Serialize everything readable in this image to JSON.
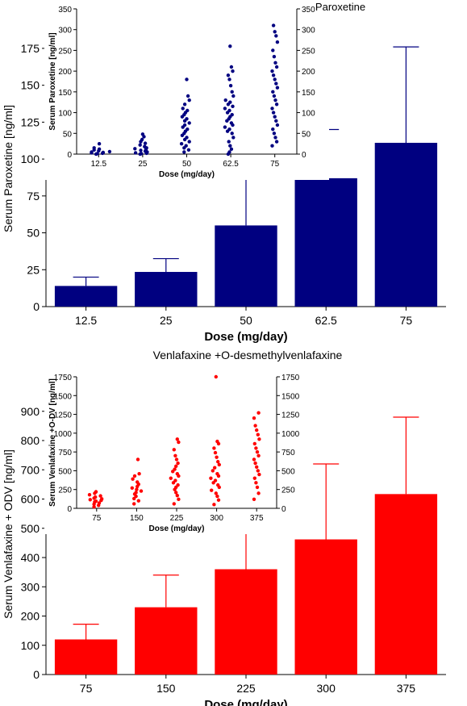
{
  "chart_data": [
    {
      "id": "paroxetine_main",
      "type": "bar",
      "title": "",
      "xlabel": "Dose (mg/day)",
      "ylabel": "Serum Paroxetine [ng/ml]",
      "categories": [
        "12.5",
        "25",
        "50",
        "62.5",
        "75"
      ],
      "values": [
        14,
        23.5,
        55,
        87,
        111
      ],
      "error_upper": [
        20,
        32.5,
        88,
        120,
        176
      ],
      "ylim": [
        0,
        187
      ],
      "yticks": [
        0,
        25,
        50,
        75,
        100,
        125,
        150,
        175
      ],
      "color": "#000080",
      "grid": false
    },
    {
      "id": "paroxetine_inset",
      "type": "scatter",
      "title": "Paroxetine",
      "xlabel": "Dose (mg/day)",
      "ylabel": "Serum Paroxetine [ng/ml]",
      "categories": [
        "12.5",
        "25",
        "50",
        "62.5",
        "75"
      ],
      "ylim": [
        0,
        350
      ],
      "yticks": [
        0,
        50,
        100,
        150,
        200,
        250,
        300,
        350
      ],
      "right_axis": true,
      "color": "#000080",
      "points": [
        [
          0,
          1,
          2,
          3,
          4,
          5,
          6,
          8,
          10,
          12,
          15,
          25
        ],
        [
          0,
          1,
          2,
          3,
          5,
          7,
          9,
          11,
          13,
          15,
          18,
          22,
          26,
          30,
          35,
          42,
          48
        ],
        [
          5,
          10,
          15,
          20,
          25,
          30,
          35,
          40,
          45,
          50,
          55,
          60,
          65,
          70,
          75,
          80,
          85,
          90,
          95,
          100,
          105,
          110,
          120,
          130,
          140,
          180
        ],
        [
          0,
          5,
          12,
          20,
          30,
          40,
          50,
          55,
          60,
          65,
          70,
          75,
          80,
          85,
          90,
          95,
          100,
          105,
          110,
          115,
          120,
          125,
          130,
          140,
          150,
          165,
          180,
          190,
          200,
          210,
          260
        ],
        [
          20,
          30,
          40,
          50,
          60,
          70,
          80,
          90,
          100,
          110,
          120,
          130,
          140,
          150,
          160,
          170,
          180,
          190,
          200,
          210,
          220,
          235,
          250,
          270,
          285,
          295,
          310
        ]
      ]
    },
    {
      "id": "venlafaxine_main",
      "type": "bar",
      "title": "Venlafaxine +O-desmethylvenlafaxine",
      "xlabel": "Dose (mg/day)",
      "ylabel": "Serum Venlafaxine + ODV [ng/ml]",
      "categories": [
        "75",
        "150",
        "225",
        "300",
        "375"
      ],
      "values": [
        120,
        230,
        360,
        462,
        617
      ],
      "error_upper": [
        172,
        340,
        530,
        720,
        880
      ],
      "ylim": [
        0,
        960
      ],
      "yticks": [
        0,
        100,
        200,
        300,
        400,
        500,
        600,
        700,
        800,
        900
      ],
      "color": "#ff0000",
      "grid": false
    },
    {
      "id": "venlafaxine_inset",
      "type": "scatter",
      "title": "",
      "xlabel": "Dose (mg/day)",
      "ylabel": "Serum Venlafaxine +O-DV [ng/ml]",
      "categories": [
        "75",
        "150",
        "225",
        "300",
        "375"
      ],
      "ylim": [
        0,
        1750
      ],
      "yticks": [
        0,
        250,
        500,
        750,
        1000,
        1250,
        1500,
        1750
      ],
      "right_axis": true,
      "color": "#ff0000",
      "points": [
        [
          20,
          40,
          55,
          70,
          85,
          95,
          105,
          115,
          125,
          135,
          150,
          165,
          180,
          200,
          220
        ],
        [
          60,
          100,
          130,
          160,
          190,
          210,
          230,
          250,
          270,
          290,
          320,
          350,
          390,
          430,
          460,
          650
        ],
        [
          60,
          120,
          170,
          210,
          250,
          280,
          310,
          340,
          370,
          400,
          430,
          460,
          490,
          520,
          560,
          600,
          650,
          700,
          780,
          880,
          920
        ],
        [
          50,
          110,
          160,
          200,
          240,
          280,
          310,
          340,
          370,
          400,
          430,
          460,
          500,
          540,
          580,
          620,
          680,
          740,
          800,
          860,
          890,
          1750
        ],
        [
          120,
          200,
          280,
          340,
          400,
          450,
          500,
          550,
          600,
          650,
          700,
          750,
          800,
          860,
          920,
          980,
          1040,
          1100,
          1200,
          1270
        ]
      ]
    }
  ]
}
